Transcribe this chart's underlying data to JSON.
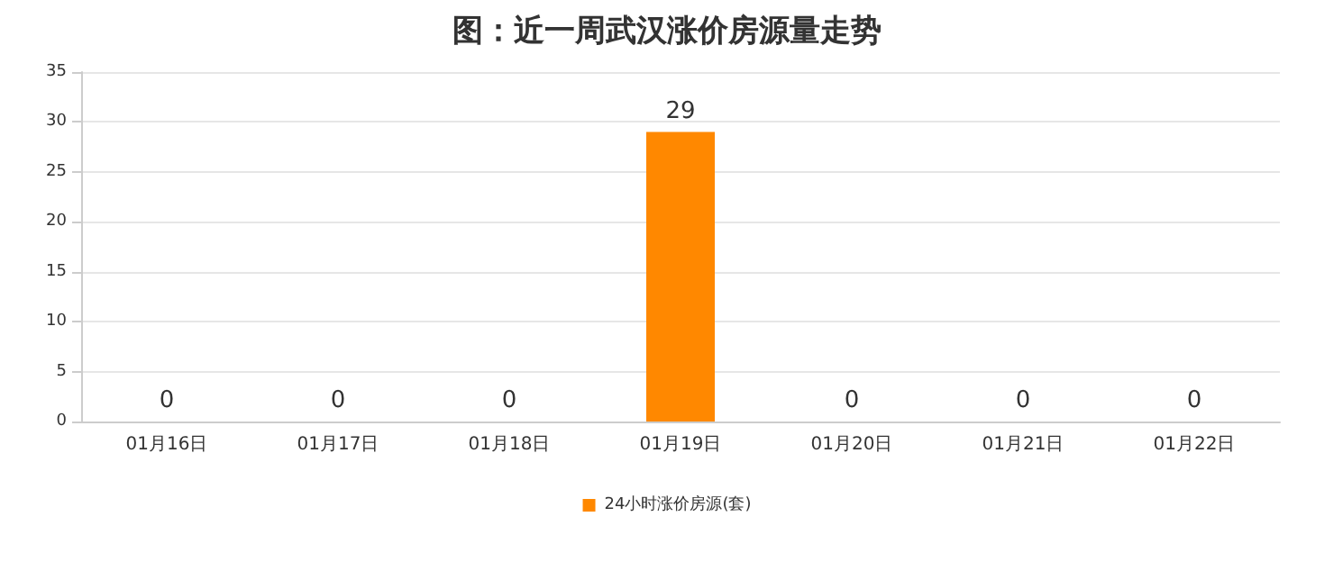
{
  "chart_data": {
    "type": "bar",
    "title": "图：近一周武汉涨价房源量走势",
    "categories": [
      "01月16日",
      "01月17日",
      "01月18日",
      "01月19日",
      "01月20日",
      "01月21日",
      "01月22日"
    ],
    "series": [
      {
        "name": "24小时涨价房源(套)",
        "color": "#ff8800",
        "values": [
          0,
          0,
          0,
          29,
          0,
          0,
          0
        ]
      }
    ],
    "ylim": [
      0,
      35
    ],
    "yticks": [
      0,
      5,
      10,
      15,
      20,
      25,
      30,
      35
    ],
    "grid": "y",
    "legend": "bottom",
    "data_labels": true
  }
}
